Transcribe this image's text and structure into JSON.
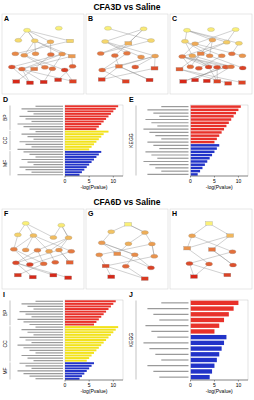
{
  "titles": [
    "CFA3D vs Saline",
    "CFA6D vs Saline"
  ],
  "networks": [
    {
      "label": "A"
    },
    {
      "label": "B"
    },
    {
      "label": "C"
    },
    {
      "label": "F"
    },
    {
      "label": "G"
    },
    {
      "label": "H"
    }
  ],
  "chart_data": [
    {
      "type": "bar",
      "label": "D",
      "orientation": "horizontal",
      "x_label": "-log(Pvalue)",
      "xlim": [
        0,
        12
      ],
      "xticks": [
        0,
        5,
        10
      ],
      "series": [
        {
          "name": "BP",
          "color": "#e8312a",
          "values": [
            11,
            10.5,
            10,
            9.5,
            9,
            8.5,
            8,
            7.5,
            7,
            6.5
          ]
        },
        {
          "name": "CC",
          "color": "#f2e21b",
          "values": [
            9,
            8,
            7.5,
            7,
            6.5,
            6,
            5.5,
            5
          ]
        },
        {
          "name": "MF",
          "color": "#2233c8",
          "values": [
            7.5,
            7,
            6.5,
            6,
            5.5,
            5,
            4.5,
            4,
            3.5,
            3
          ]
        }
      ]
    },
    {
      "type": "bar",
      "label": "E",
      "orientation": "horizontal",
      "x_label": "-log(Pvalue)",
      "xlim": [
        0,
        12
      ],
      "xticks": [
        0,
        5,
        10
      ],
      "series": [
        {
          "name": "KEGG",
          "values": [
            10.5,
            10,
            9.5,
            9,
            8.5,
            8,
            7.5,
            7,
            6.5,
            6,
            5.5,
            5,
            6,
            5.5,
            5,
            4.5,
            4,
            3.5,
            3,
            2.5,
            2,
            1.5
          ],
          "colors": [
            "#e8312a",
            "#e8312a",
            "#e8312a",
            "#e8312a",
            "#e8312a",
            "#e8312a",
            "#e8312a",
            "#e8312a",
            "#e8312a",
            "#e8312a",
            "#e8312a",
            "#e8312a",
            "#2233c8",
            "#2233c8",
            "#2233c8",
            "#2233c8",
            "#2233c8",
            "#2233c8",
            "#2233c8",
            "#2233c8",
            "#2233c8",
            "#2233c8"
          ]
        }
      ]
    },
    {
      "type": "bar",
      "label": "I",
      "orientation": "horizontal",
      "x_label": "-log(Pvalue)",
      "xlim": [
        0,
        12
      ],
      "xticks": [
        0,
        5,
        10
      ],
      "series": [
        {
          "name": "BP",
          "color": "#e8312a",
          "values": [
            10.5,
            10,
            9.5,
            9,
            8.5,
            8,
            7.5,
            7,
            6.5,
            6
          ]
        },
        {
          "name": "CC",
          "color": "#f2e21b",
          "values": [
            11,
            10.5,
            10,
            9.5,
            9,
            8.5,
            8,
            7.5,
            7,
            6.5,
            6,
            5.5,
            5,
            4.5
          ]
        },
        {
          "name": "MF",
          "color": "#2233c8",
          "values": [
            6,
            5.5,
            5,
            4.5,
            4,
            3.5,
            3
          ]
        }
      ]
    },
    {
      "type": "bar",
      "label": "J",
      "orientation": "horizontal",
      "x_label": "-log(Pvalue)",
      "xlim": [
        0,
        12
      ],
      "xticks": [
        0,
        5,
        10
      ],
      "series": [
        {
          "name": "KEGG",
          "values": [
            10,
            9,
            8,
            7,
            6,
            5,
            7.5,
            7,
            6.5,
            6,
            5.5,
            5,
            4.5,
            4
          ],
          "colors": [
            "#e8312a",
            "#e8312a",
            "#e8312a",
            "#e8312a",
            "#e8312a",
            "#e8312a",
            "#2233c8",
            "#2233c8",
            "#2233c8",
            "#2233c8",
            "#2233c8",
            "#2233c8",
            "#2233c8",
            "#2233c8"
          ]
        }
      ]
    }
  ]
}
